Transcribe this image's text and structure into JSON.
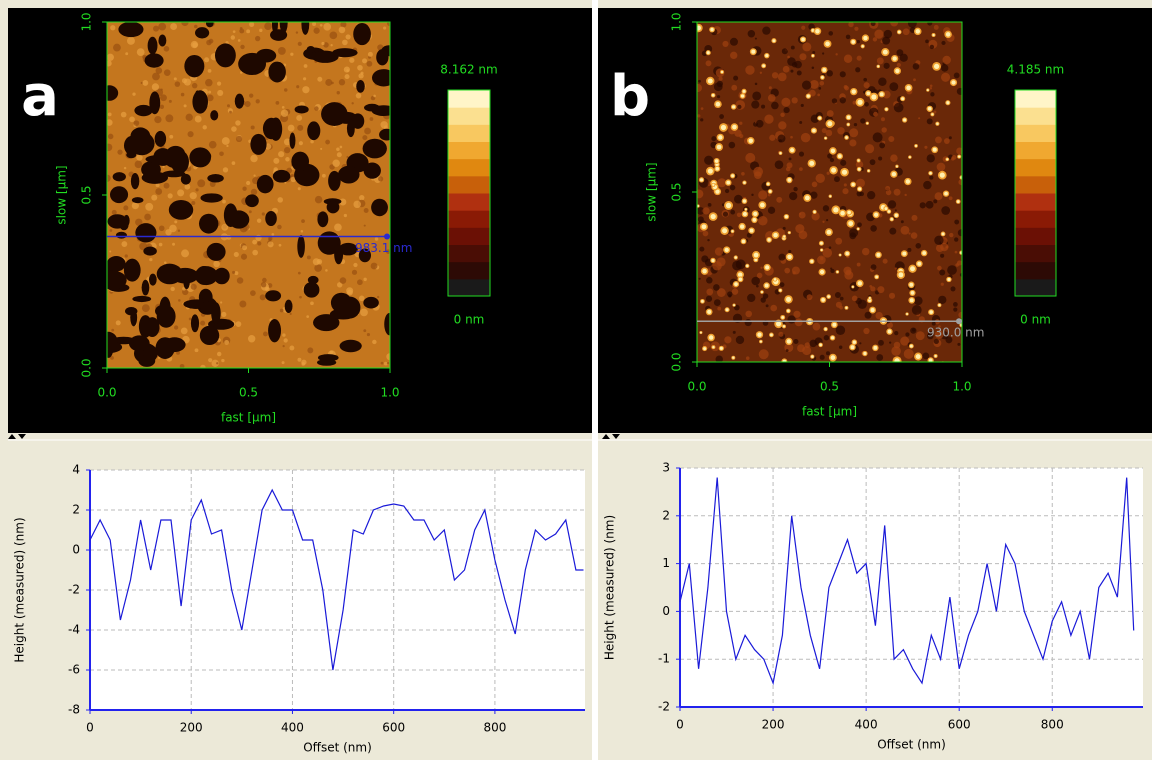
{
  "chart_data": [
    {
      "type": "image",
      "panel_label": "a",
      "xlabel": "fast [µm]",
      "ylabel": "slow [µm]",
      "xlim": [
        0,
        1
      ],
      "ylim": [
        0,
        1
      ],
      "xticks": [
        {
          "value": 0,
          "label": "0.0"
        },
        {
          "value": 0.5,
          "label": "0.5"
        },
        {
          "value": 1,
          "label": "1.0"
        }
      ],
      "yticks": [
        {
          "value": 0,
          "label": "0.0"
        },
        {
          "value": 0.5,
          "label": "0.5"
        },
        {
          "value": 1,
          "label": "1.0"
        }
      ],
      "clim": [
        0,
        8.162
      ],
      "cticks": [
        {
          "value": 8.162,
          "label": "8.162 nm"
        },
        {
          "value": 0,
          "label": "0 nm"
        }
      ],
      "profile_y": 0.38,
      "profile_label": "983.1 nm",
      "profile_color": "#2a2ad0"
    },
    {
      "type": "line",
      "xlabel": "Offset (nm)",
      "ylabel": "Height (measured) (nm)",
      "color": "#1a1ad8",
      "xlim": [
        0,
        978
      ],
      "ylim": [
        -8,
        4
      ],
      "xticks": [
        0,
        200,
        400,
        600,
        800
      ],
      "yticks": [
        -8,
        -6,
        -4,
        -2,
        0,
        2,
        4
      ],
      "grid": true,
      "x": [
        0,
        20,
        40,
        60,
        80,
        100,
        120,
        140,
        160,
        180,
        200,
        220,
        240,
        260,
        280,
        300,
        320,
        340,
        360,
        380,
        400,
        420,
        440,
        460,
        480,
        500,
        520,
        540,
        560,
        580,
        600,
        620,
        640,
        660,
        680,
        700,
        720,
        740,
        760,
        780,
        800,
        820,
        840,
        860,
        880,
        900,
        920,
        940,
        960,
        975
      ],
      "values": [
        0.5,
        1.5,
        0.5,
        -3.5,
        -1.5,
        1.5,
        -1.0,
        1.5,
        1.5,
        -2.8,
        1.5,
        2.5,
        0.8,
        1.0,
        -2.0,
        -4.0,
        -1.0,
        2.0,
        3.0,
        2.0,
        2.0,
        0.5,
        0.5,
        -2.0,
        -6.0,
        -3.0,
        1.0,
        0.8,
        2.0,
        2.2,
        2.3,
        2.2,
        1.5,
        1.5,
        0.5,
        1.0,
        -1.5,
        -1.0,
        1.0,
        2.0,
        -0.5,
        -2.5,
        -4.2,
        -1.0,
        1.0,
        0.5,
        0.8,
        1.5,
        -1.0,
        -1.0
      ]
    },
    {
      "type": "image",
      "panel_label": "b",
      "xlabel": "fast [µm]",
      "ylabel": "slow [µm]",
      "xlim": [
        0,
        1
      ],
      "ylim": [
        0,
        1
      ],
      "xticks": [
        {
          "value": 0,
          "label": "0.0"
        },
        {
          "value": 0.5,
          "label": "0.5"
        },
        {
          "value": 1,
          "label": "1.0"
        }
      ],
      "yticks": [
        {
          "value": 0,
          "label": "0.0"
        },
        {
          "value": 0.5,
          "label": "0.5"
        },
        {
          "value": 1,
          "label": "1.0"
        }
      ],
      "clim": [
        0,
        4.185
      ],
      "cticks": [
        {
          "value": 4.185,
          "label": "4.185 nm"
        },
        {
          "value": 0,
          "label": "0 nm"
        }
      ],
      "profile_y": 0.12,
      "profile_label": "930.0 nm",
      "profile_color": "#a0a0a0"
    },
    {
      "type": "line",
      "xlabel": "Offset (nm)",
      "ylabel": "Height (measured) (nm)",
      "color": "#1a1ad8",
      "xlim": [
        0,
        995
      ],
      "ylim": [
        -2,
        3
      ],
      "xticks": [
        0,
        200,
        400,
        600,
        800
      ],
      "yticks": [
        -2,
        -1,
        0,
        1,
        2,
        3
      ],
      "grid": true,
      "x": [
        0,
        20,
        40,
        60,
        80,
        100,
        120,
        140,
        160,
        180,
        200,
        220,
        240,
        260,
        280,
        300,
        320,
        340,
        360,
        380,
        400,
        420,
        440,
        460,
        480,
        500,
        520,
        540,
        560,
        580,
        600,
        620,
        640,
        660,
        680,
        700,
        720,
        740,
        760,
        780,
        800,
        820,
        840,
        860,
        880,
        900,
        920,
        940,
        960,
        975
      ],
      "values": [
        0.2,
        1.0,
        -1.2,
        0.5,
        2.8,
        0.0,
        -1.0,
        -0.5,
        -0.8,
        -1.0,
        -1.5,
        -0.5,
        2.0,
        0.5,
        -0.5,
        -1.2,
        0.5,
        1.0,
        1.5,
        0.8,
        1.0,
        -0.3,
        1.8,
        -1.0,
        -0.8,
        -1.2,
        -1.5,
        -0.5,
        -1.0,
        0.3,
        -1.2,
        -0.5,
        0.0,
        1.0,
        0.0,
        1.4,
        1.0,
        0.0,
        -0.5,
        -1.0,
        -0.2,
        0.2,
        -0.5,
        0.0,
        -1.0,
        0.5,
        0.8,
        0.3,
        2.8,
        -0.4
      ]
    }
  ]
}
